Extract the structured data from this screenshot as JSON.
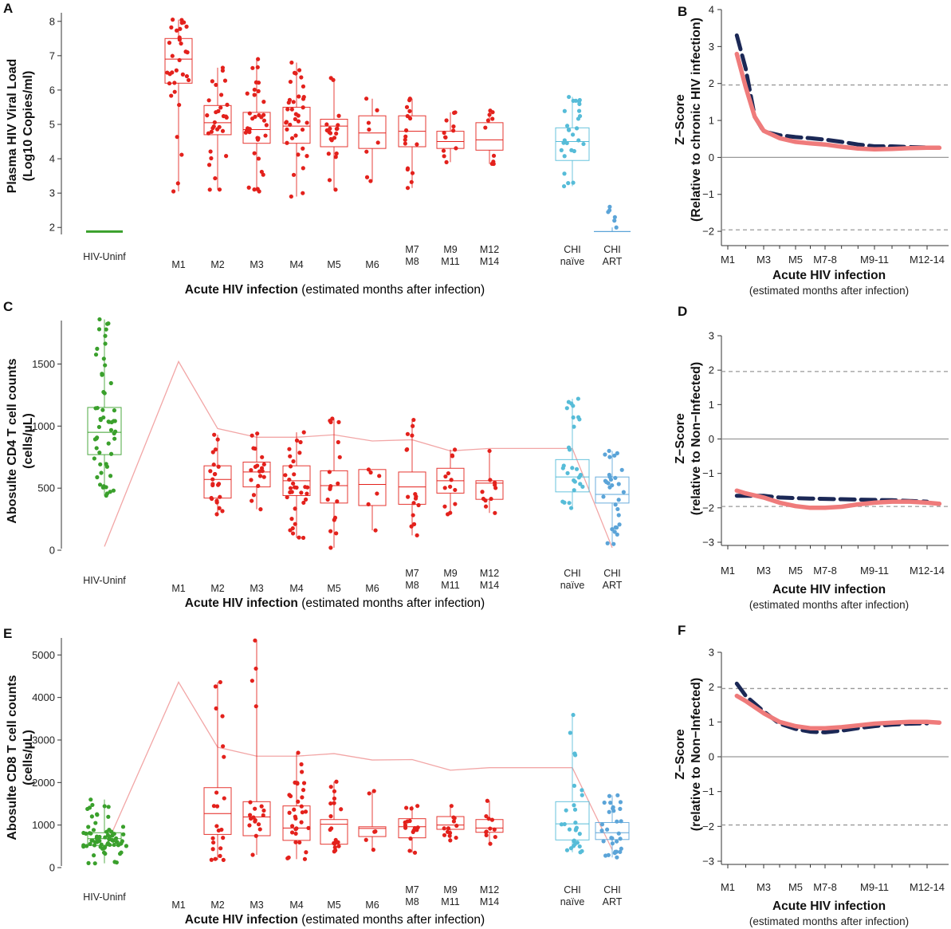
{
  "colors": {
    "acute": "#e3211c",
    "uninf": "#3aa02c",
    "naive": "#56bcd8",
    "art": "#5ba4d8",
    "zsolid": "#ef7b7b",
    "zdash": "#1b2856",
    "trend": "#f2a6a6"
  },
  "x_title_bold": "Acute HIV infection",
  "x_title_rest": " (estimated months after infection)",
  "z_x_title": "Acute HIV infection",
  "z_x_subtitle": "(estimated months after infection)",
  "chart_data": [
    {
      "id": "A",
      "type": "box",
      "panel_label": "A",
      "ylabel_line1": "Plasma HIV Viral Load",
      "ylabel_line2": "(Log10 Copies/ml)",
      "ylim": [
        1.75,
        8.25
      ],
      "yticks": [
        "2",
        "3",
        "4",
        "5",
        "6",
        "7",
        "8"
      ],
      "categories": [
        "HIV-Uninf",
        "M1",
        "M2",
        "M3",
        "M4",
        "M5",
        "M6",
        "M7\nM8",
        "M9\nM11",
        "M12\nM14",
        "CHI\nnaïve",
        "CHI\nART"
      ],
      "groups": [
        {
          "cat": "HIV-Uninf",
          "line": 1.88
        },
        {
          "cat": "M1",
          "min": 3.05,
          "q1": 6.2,
          "median": 6.9,
          "q3": 7.5,
          "max": 8.05,
          "n": 32
        },
        {
          "cat": "M2",
          "min": 3.1,
          "q1": 4.7,
          "median": 5.05,
          "q3": 5.55,
          "max": 6.65,
          "n": 30
        },
        {
          "cat": "M3",
          "min": 3.05,
          "q1": 4.45,
          "median": 4.85,
          "q3": 5.35,
          "max": 6.9,
          "n": 35
        },
        {
          "cat": "M4",
          "min": 2.9,
          "q1": 4.45,
          "median": 4.95,
          "q3": 5.5,
          "max": 6.8,
          "n": 36
        },
        {
          "cat": "M5",
          "min": 3.1,
          "q1": 4.35,
          "median": 4.95,
          "q3": 5.15,
          "max": 6.35,
          "n": 20
        },
        {
          "cat": "M6",
          "min": 3.35,
          "q1": 4.3,
          "median": 4.75,
          "q3": 5.25,
          "max": 5.75,
          "n": 8
        },
        {
          "cat": "M7\nM8",
          "min": 3.15,
          "q1": 4.35,
          "median": 4.8,
          "q3": 5.25,
          "max": 5.75,
          "n": 16
        },
        {
          "cat": "M9\nM11",
          "min": 3.9,
          "q1": 4.3,
          "median": 4.5,
          "q3": 4.8,
          "max": 5.35,
          "n": 12
        },
        {
          "cat": "M12\nM14",
          "min": 3.85,
          "q1": 4.25,
          "median": 4.55,
          "q3": 5.05,
          "max": 5.4,
          "n": 10
        },
        {
          "cat": "CHI\nnaïve",
          "min": 3.2,
          "q1": 3.95,
          "median": 4.5,
          "q3": 4.9,
          "max": 5.8,
          "n": 28
        },
        {
          "cat": "CHI\nART",
          "line": 1.88,
          "points": [
            2.6,
            2.5,
            2.45,
            2.3,
            2.2,
            2.0
          ],
          "n": 6
        }
      ]
    },
    {
      "id": "C",
      "type": "box",
      "panel_label": "C",
      "ylabel_line1": "Abosulte CD4 T cell counts",
      "ylabel_line2": "(cells/µL)",
      "ylim": [
        0,
        1850
      ],
      "yticks": [
        "0",
        "500",
        "1000",
        "1500"
      ],
      "categories": [
        "HIV-Uninf",
        "M1",
        "M2",
        "M3",
        "M4",
        "M5",
        "M6",
        "M7\nM8",
        "M9\nM11",
        "M12\nM14",
        "CHI\nnaïve",
        "CHI\nART"
      ],
      "trend_line": [
        30,
        1520,
        980,
        910,
        910,
        930,
        880,
        890,
        800,
        820,
        820,
        20
      ],
      "groups": [
        {
          "cat": "HIV-Uninf",
          "min": 440,
          "q1": 770,
          "median": 950,
          "q3": 1150,
          "max": 1860,
          "n": 55
        },
        {
          "cat": "M1",
          "n": 0
        },
        {
          "cat": "M2",
          "min": 290,
          "q1": 420,
          "median": 570,
          "q3": 680,
          "max": 930,
          "n": 22
        },
        {
          "cat": "M3",
          "min": 330,
          "q1": 510,
          "median": 630,
          "q3": 710,
          "max": 940,
          "n": 19
        },
        {
          "cat": "M4",
          "min": 100,
          "q1": 440,
          "median": 560,
          "q3": 680,
          "max": 950,
          "n": 32
        },
        {
          "cat": "M5",
          "min": 20,
          "q1": 380,
          "median": 520,
          "q3": 640,
          "max": 1060,
          "n": 18
        },
        {
          "cat": "M6",
          "min": 160,
          "q1": 360,
          "median": 530,
          "q3": 650,
          "max": 650,
          "n": 6
        },
        {
          "cat": "M7\nM8",
          "min": 120,
          "q1": 370,
          "median": 510,
          "q3": 630,
          "max": 1050,
          "n": 16
        },
        {
          "cat": "M9\nM11",
          "min": 290,
          "q1": 460,
          "median": 560,
          "q3": 660,
          "max": 810,
          "n": 13
        },
        {
          "cat": "M12\nM14",
          "min": 300,
          "q1": 410,
          "median": 540,
          "q3": 560,
          "max": 800,
          "n": 11
        },
        {
          "cat": "CHI\nnaïve",
          "min": 340,
          "q1": 470,
          "median": 590,
          "q3": 730,
          "max": 1220,
          "n": 28
        },
        {
          "cat": "CHI\nART",
          "min": 50,
          "q1": 380,
          "median": 450,
          "q3": 590,
          "max": 800,
          "n": 30
        }
      ]
    },
    {
      "id": "E",
      "type": "box",
      "panel_label": "E",
      "ylabel_line1": "Abosulte CD8 T cell counts",
      "ylabel_line2": "(cells/µL)",
      "ylim": [
        0,
        5400
      ],
      "yticks": [
        "0",
        "1000",
        "2000",
        "3000",
        "4000",
        "5000"
      ],
      "categories": [
        "HIV-Uninf",
        "M1",
        "M2",
        "M3",
        "M4",
        "M5",
        "M6",
        "M7\nM8",
        "M9\nM11",
        "M12\nM14",
        "CHI\nnaïve",
        "CHI\nART"
      ],
      "trend_line": [
        420,
        4360,
        2830,
        2620,
        2620,
        2680,
        2530,
        2540,
        2290,
        2350,
        2350,
        420
      ],
      "groups": [
        {
          "cat": "HIV-Uninf",
          "min": 100,
          "q1": 520,
          "median": 680,
          "q3": 820,
          "max": 1600,
          "n": 70
        },
        {
          "cat": "M1",
          "n": 0
        },
        {
          "cat": "M2",
          "min": 180,
          "q1": 780,
          "median": 1270,
          "q3": 1880,
          "max": 4360,
          "n": 22
        },
        {
          "cat": "M3",
          "min": 300,
          "q1": 750,
          "median": 1190,
          "q3": 1550,
          "max": 5340,
          "n": 19
        },
        {
          "cat": "M4",
          "min": 200,
          "q1": 640,
          "median": 930,
          "q3": 1450,
          "max": 2700,
          "n": 32
        },
        {
          "cat": "M5",
          "min": 380,
          "q1": 550,
          "median": 1020,
          "q3": 1130,
          "max": 2020,
          "n": 18
        },
        {
          "cat": "M6",
          "min": 420,
          "q1": 730,
          "median": 920,
          "q3": 960,
          "max": 1800,
          "n": 6
        },
        {
          "cat": "M7\nM8",
          "min": 350,
          "q1": 700,
          "median": 960,
          "q3": 1150,
          "max": 1450,
          "n": 16
        },
        {
          "cat": "M9\nM11",
          "min": 640,
          "q1": 900,
          "median": 1000,
          "q3": 1200,
          "max": 1450,
          "n": 13
        },
        {
          "cat": "M12\nM14",
          "min": 560,
          "q1": 830,
          "median": 930,
          "q3": 1130,
          "max": 1570,
          "n": 11
        },
        {
          "cat": "CHI\nnaïve",
          "min": 360,
          "q1": 650,
          "median": 1030,
          "q3": 1550,
          "max": 3590,
          "n": 28
        },
        {
          "cat": "CHI\nART",
          "min": 240,
          "q1": 660,
          "median": 820,
          "q3": 1060,
          "max": 1700,
          "n": 30
        }
      ]
    },
    {
      "id": "B",
      "type": "line",
      "panel_label": "B",
      "ylabel_line1": "Z−Score",
      "ylabel_line2": "(Relative to chronic HIV infection)",
      "ylim": [
        -2.3,
        4
      ],
      "yticks": [
        "−2",
        "−1",
        "0",
        "1",
        "2",
        "3",
        "4"
      ],
      "xticks": [
        "M1",
        "M3",
        "M5",
        "M7-8",
        "M9-11",
        "M12-14"
      ],
      "xtick_values": [
        1,
        3,
        5,
        7,
        10,
        13
      ],
      "xlim": [
        0.6,
        14.3
      ],
      "threshold": 1.96,
      "series": [
        {
          "name": "solid",
          "x": [
            1.5,
            2,
            2.5,
            3,
            4,
            5,
            6,
            7,
            8,
            9,
            10,
            11,
            12,
            13,
            13.7
          ],
          "y": [
            2.8,
            1.9,
            1.1,
            0.72,
            0.52,
            0.42,
            0.38,
            0.35,
            0.29,
            0.24,
            0.22,
            0.23,
            0.25,
            0.26,
            0.26
          ]
        },
        {
          "name": "dashed",
          "x": [
            1.5,
            2,
            2.5,
            3,
            4,
            5,
            6,
            7,
            8,
            9,
            10,
            11,
            12,
            13
          ],
          "y": [
            3.3,
            2.4,
            1.1,
            0.7,
            0.6,
            0.55,
            0.52,
            0.48,
            0.42,
            0.35,
            0.3,
            0.3,
            0.28,
            0.27
          ]
        }
      ]
    },
    {
      "id": "D",
      "type": "line",
      "panel_label": "D",
      "ylabel_line1": "Z−Score",
      "ylabel_line2": "(relative to Non−Infected)",
      "ylim": [
        -3,
        3
      ],
      "yticks": [
        "−3",
        "−2",
        "−1",
        "0",
        "1",
        "2",
        "3"
      ],
      "xticks": [
        "M1",
        "M3",
        "M5",
        "M7-8",
        "M9-11",
        "M12-14"
      ],
      "xtick_values": [
        1,
        3,
        5,
        7,
        10,
        13
      ],
      "xlim": [
        0.6,
        14.3
      ],
      "threshold": 1.96,
      "series": [
        {
          "name": "solid",
          "x": [
            1.5,
            2,
            3,
            4,
            5,
            6,
            7,
            8,
            9,
            10,
            11,
            12,
            13,
            13.7
          ],
          "y": [
            -1.5,
            -1.58,
            -1.7,
            -1.85,
            -1.95,
            -2.0,
            -2.0,
            -1.97,
            -1.9,
            -1.85,
            -1.82,
            -1.82,
            -1.85,
            -1.88
          ]
        },
        {
          "name": "dashed",
          "x": [
            1.5,
            2,
            3,
            4,
            5,
            6,
            7,
            8,
            9,
            10,
            11,
            12,
            13
          ],
          "y": [
            -1.65,
            -1.65,
            -1.65,
            -1.7,
            -1.72,
            -1.73,
            -1.74,
            -1.75,
            -1.76,
            -1.77,
            -1.78,
            -1.8,
            -1.82
          ]
        }
      ]
    },
    {
      "id": "F",
      "type": "line",
      "panel_label": "F",
      "ylabel_line1": "Z−Score",
      "ylabel_line2": "(relative to Non−Infected)",
      "ylim": [
        -3,
        3
      ],
      "yticks": [
        "−3",
        "−2",
        "−1",
        "0",
        "1",
        "2",
        "3"
      ],
      "xticks": [
        "M1",
        "M3",
        "M5",
        "M7-8",
        "M9-11",
        "M12-14"
      ],
      "xtick_values": [
        1,
        3,
        5,
        7,
        10,
        13
      ],
      "xlim": [
        0.6,
        14.3
      ],
      "threshold": 1.96,
      "series": [
        {
          "name": "solid",
          "x": [
            1.5,
            2,
            3,
            4,
            5,
            6,
            7,
            8,
            9,
            10,
            11,
            12,
            13,
            13.7
          ],
          "y": [
            1.75,
            1.6,
            1.25,
            1.0,
            0.88,
            0.82,
            0.82,
            0.85,
            0.9,
            0.95,
            0.98,
            1.0,
            1.0,
            0.98
          ]
        },
        {
          "name": "dashed",
          "x": [
            1.5,
            2,
            3,
            4,
            5,
            6,
            7,
            8,
            9,
            10,
            11,
            12,
            13
          ],
          "y": [
            2.1,
            1.75,
            1.3,
            0.95,
            0.8,
            0.72,
            0.7,
            0.75,
            0.82,
            0.88,
            0.92,
            0.95,
            0.96
          ]
        }
      ]
    }
  ]
}
